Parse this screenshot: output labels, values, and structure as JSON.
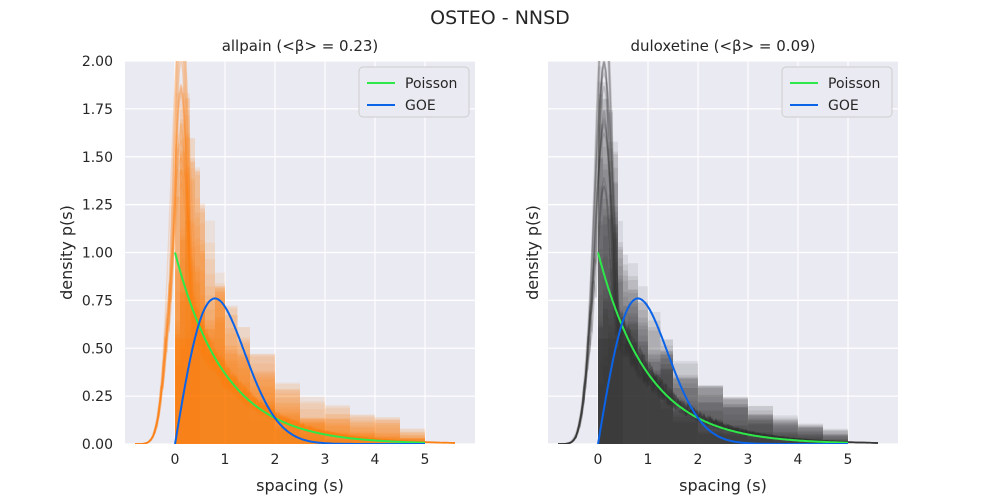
{
  "figure": {
    "suptitle": "OSTEO - NNSD"
  },
  "chart_data": [
    {
      "type": "histogram-overlay",
      "title": "allpain (<β> = 0.23)",
      "xlabel": "spacing (s)",
      "ylabel": "density p(s)",
      "xlim": [
        -1,
        6
      ],
      "ylim": [
        0,
        2
      ],
      "xticks": [
        "0",
        "1",
        "2",
        "3",
        "4",
        "5"
      ],
      "xtick_values": [
        0,
        1,
        2,
        3,
        4,
        5
      ],
      "yticks": [
        "0.00",
        "0.25",
        "0.50",
        "0.75",
        "1.00",
        "1.25",
        "1.50",
        "1.75",
        "2.00"
      ],
      "ytick_values": [
        0,
        0.25,
        0.5,
        0.75,
        1.0,
        1.25,
        1.5,
        1.75,
        2.0
      ],
      "grid": true,
      "legend_position": "top-right",
      "sample_color": "#ff7f0e",
      "samples": {
        "bin_edges": [
          0,
          0.1,
          0.2,
          0.3,
          0.4,
          0.5,
          0.6,
          0.8,
          1.0,
          1.25,
          1.5,
          2.0,
          2.5,
          3.0,
          3.5,
          4.0,
          4.5,
          5.0
        ],
        "density_max": [
          2.0,
          2.0,
          1.85,
          1.7,
          1.45,
          1.3,
          1.2,
          0.9,
          0.75,
          0.62,
          0.48,
          0.34,
          0.26,
          0.22,
          0.18,
          0.14,
          0.09
        ],
        "density_min": [
          0.4,
          0.5,
          0.55,
          0.6,
          0.55,
          0.5,
          0.45,
          0.4,
          0.3,
          0.2,
          0.12,
          0.06,
          0.03,
          0.02,
          0.01,
          0.0,
          0.0
        ]
      },
      "series": [
        {
          "name": "Poisson",
          "color": "#2ee84a",
          "kind": "poisson"
        },
        {
          "name": "GOE",
          "color": "#0b63e8",
          "kind": "goe"
        }
      ]
    },
    {
      "type": "histogram-overlay",
      "title": "duloxetine (<β> = 0.09)",
      "xlabel": "spacing (s)",
      "ylabel": "density p(s)",
      "xlim": [
        -1,
        6
      ],
      "ylim": [
        0,
        2
      ],
      "xticks": [
        "0",
        "1",
        "2",
        "3",
        "4",
        "5"
      ],
      "xtick_values": [
        0,
        1,
        2,
        3,
        4,
        5
      ],
      "grid": true,
      "legend_position": "top-right",
      "sample_color": "#333333",
      "samples": {
        "bin_edges": [
          0,
          0.1,
          0.2,
          0.3,
          0.4,
          0.5,
          0.6,
          0.8,
          1.0,
          1.25,
          1.5,
          2.0,
          2.5,
          3.0,
          3.5,
          4.0,
          4.5,
          5.0
        ],
        "density_max": [
          2.0,
          2.0,
          1.8,
          1.6,
          1.2,
          1.0,
          0.95,
          0.85,
          0.7,
          0.55,
          0.45,
          0.32,
          0.25,
          0.2,
          0.15,
          0.12,
          0.08
        ],
        "density_min": [
          0.3,
          0.4,
          0.5,
          0.5,
          0.5,
          0.45,
          0.4,
          0.35,
          0.28,
          0.18,
          0.1,
          0.05,
          0.03,
          0.02,
          0.01,
          0.0,
          0.0
        ]
      },
      "series": [
        {
          "name": "Poisson",
          "color": "#2ee84a",
          "kind": "poisson"
        },
        {
          "name": "GOE",
          "color": "#0b63e8",
          "kind": "goe"
        }
      ]
    }
  ]
}
